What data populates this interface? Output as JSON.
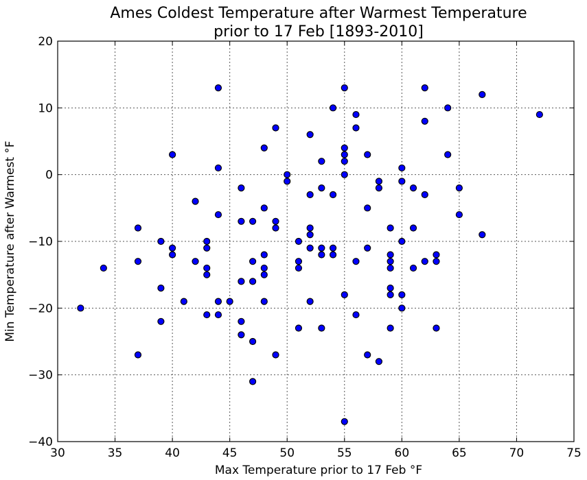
{
  "chart_data": {
    "type": "scatter",
    "title_line1": "Ames Coldest Temperature after Warmest Temperature",
    "title_line2": "prior to 17 Feb [1893-2010]",
    "xlabel": "Max Temperature prior to 17 Feb °F",
    "ylabel": "Min Temperature after Warmest °F",
    "xlim": [
      30,
      75
    ],
    "ylim": [
      -40,
      20
    ],
    "xticks": [
      30,
      35,
      40,
      45,
      50,
      55,
      60,
      65,
      70,
      75
    ],
    "yticks": [
      -40,
      -30,
      -20,
      -10,
      0,
      10,
      20
    ],
    "xtick_labels": [
      "30",
      "35",
      "40",
      "45",
      "50",
      "55",
      "60",
      "65",
      "70",
      "75"
    ],
    "ytick_labels": [
      "−40",
      "−30",
      "−20",
      "−10",
      "0",
      "10",
      "20"
    ],
    "grid": true,
    "marker_color": "#0000ff",
    "points": [
      [
        32,
        -20
      ],
      [
        34,
        -14
      ],
      [
        37,
        -8
      ],
      [
        37,
        -13
      ],
      [
        37,
        -27
      ],
      [
        39,
        -10
      ],
      [
        39,
        -17
      ],
      [
        39,
        -22
      ],
      [
        40,
        3
      ],
      [
        40,
        -11
      ],
      [
        40,
        -12
      ],
      [
        41,
        -19
      ],
      [
        42,
        -4
      ],
      [
        42,
        -13
      ],
      [
        43,
        -10
      ],
      [
        43,
        -11
      ],
      [
        43,
        -14
      ],
      [
        43,
        -15
      ],
      [
        43,
        -21
      ],
      [
        44,
        13
      ],
      [
        44,
        1
      ],
      [
        44,
        -6
      ],
      [
        44,
        -19
      ],
      [
        44,
        -21
      ],
      [
        45,
        -19
      ],
      [
        46,
        -2
      ],
      [
        46,
        -7
      ],
      [
        46,
        -16
      ],
      [
        46,
        -22
      ],
      [
        46,
        -24
      ],
      [
        47,
        -7
      ],
      [
        47,
        -13
      ],
      [
        47,
        -16
      ],
      [
        47,
        -25
      ],
      [
        47,
        -31
      ],
      [
        48,
        4
      ],
      [
        48,
        -5
      ],
      [
        48,
        -12
      ],
      [
        48,
        -14
      ],
      [
        48,
        -15
      ],
      [
        48,
        -19
      ],
      [
        49,
        7
      ],
      [
        49,
        -7
      ],
      [
        49,
        -8
      ],
      [
        49,
        -27
      ],
      [
        50,
        0
      ],
      [
        50,
        -1
      ],
      [
        51,
        -10
      ],
      [
        51,
        -13
      ],
      [
        51,
        -14
      ],
      [
        51,
        -23
      ],
      [
        52,
        6
      ],
      [
        52,
        -3
      ],
      [
        52,
        -8
      ],
      [
        52,
        -9
      ],
      [
        52,
        -11
      ],
      [
        52,
        -19
      ],
      [
        53,
        2
      ],
      [
        53,
        -2
      ],
      [
        53,
        -11
      ],
      [
        53,
        -12
      ],
      [
        53,
        -23
      ],
      [
        54,
        10
      ],
      [
        54,
        -3
      ],
      [
        54,
        -11
      ],
      [
        54,
        -12
      ],
      [
        55,
        13
      ],
      [
        55,
        4
      ],
      [
        55,
        3
      ],
      [
        55,
        2
      ],
      [
        55,
        0
      ],
      [
        55,
        -18
      ],
      [
        55,
        -37
      ],
      [
        56,
        9
      ],
      [
        56,
        7
      ],
      [
        56,
        -13
      ],
      [
        56,
        -21
      ],
      [
        57,
        3
      ],
      [
        57,
        -5
      ],
      [
        57,
        -11
      ],
      [
        57,
        -27
      ],
      [
        58,
        -1
      ],
      [
        58,
        -2
      ],
      [
        58,
        -28
      ],
      [
        59,
        -8
      ],
      [
        59,
        -12
      ],
      [
        59,
        -13
      ],
      [
        59,
        -14
      ],
      [
        59,
        -17
      ],
      [
        59,
        -18
      ],
      [
        59,
        -23
      ],
      [
        60,
        1
      ],
      [
        60,
        -1
      ],
      [
        60,
        -10
      ],
      [
        60,
        -18
      ],
      [
        60,
        -20
      ],
      [
        61,
        -2
      ],
      [
        61,
        -8
      ],
      [
        61,
        -14
      ],
      [
        62,
        13
      ],
      [
        62,
        8
      ],
      [
        62,
        -3
      ],
      [
        62,
        -13
      ],
      [
        63,
        -12
      ],
      [
        63,
        -13
      ],
      [
        63,
        -23
      ],
      [
        64,
        10
      ],
      [
        64,
        3
      ],
      [
        65,
        -2
      ],
      [
        65,
        -6
      ],
      [
        67,
        12
      ],
      [
        67,
        -9
      ],
      [
        72,
        9
      ]
    ]
  }
}
